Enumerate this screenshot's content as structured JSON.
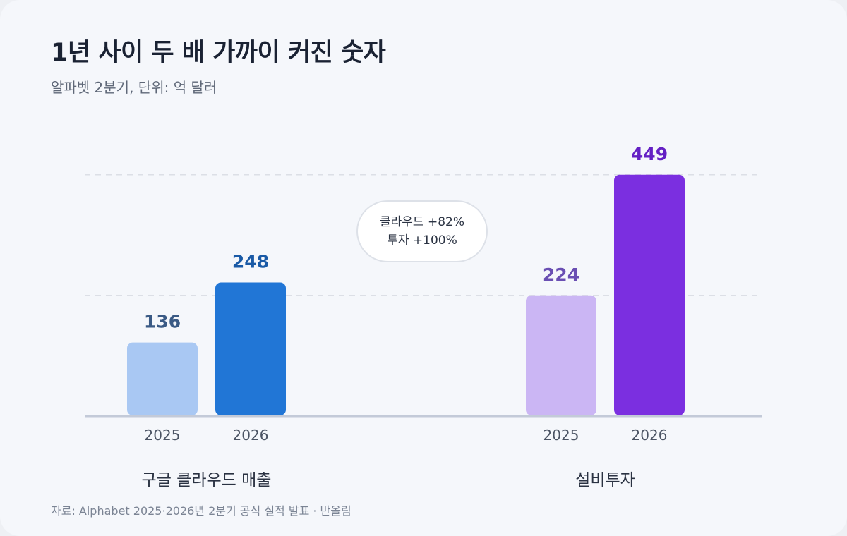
{
  "header": {
    "title": "1년 사이 두 배 가까이 커진 숫자",
    "subtitle": "알파벳 2분기, 단위: 억 달러"
  },
  "callout": {
    "line1": "클라우드 +82%",
    "line2": "투자 +100%"
  },
  "footer": {
    "source": "자료: Alphabet 2025·2026년 2분기 공식 실적 발표 · 반올림"
  },
  "chart_data": {
    "type": "bar",
    "unit": "억 달러",
    "ylim": [
      0,
      500
    ],
    "grid": true,
    "groups": [
      {
        "name": "구글 클라우드 매출",
        "bars": [
          {
            "x": "2025",
            "value": 136,
            "color": "#a9c8f3",
            "label_color": "#3a5a85"
          },
          {
            "x": "2026",
            "value": 248,
            "color": "#2176d6",
            "label_color": "#1a5aa6"
          }
        ]
      },
      {
        "name": "설비투자",
        "bars": [
          {
            "x": "2025",
            "value": 224,
            "color": "#cbb6f4",
            "label_color": "#6a4fb3"
          },
          {
            "x": "2026",
            "value": 449,
            "color": "#7b2fe0",
            "label_color": "#6420c4"
          }
        ]
      }
    ]
  }
}
